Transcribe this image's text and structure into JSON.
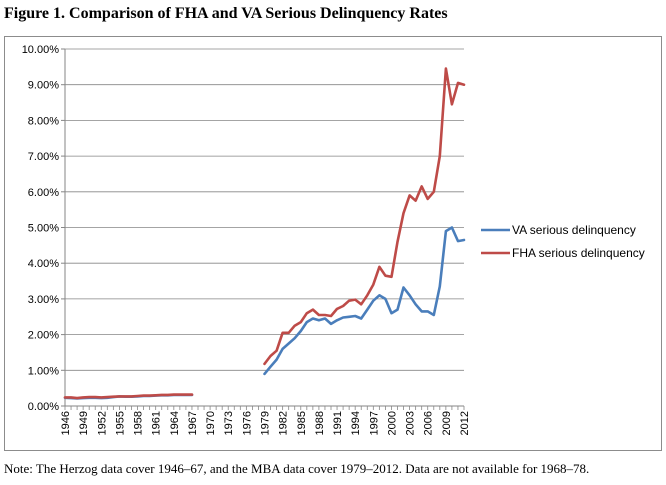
{
  "title": "Figure 1. Comparison of FHA and VA Serious Delinquency Rates",
  "note": "Note: The Herzog data cover 1946–67, and the MBA data cover 1979–2012. Data are not available for 1968–78.",
  "colors": {
    "va": "#4a7ebb",
    "fha": "#be4b48",
    "axis": "#868686",
    "grid": "#868686"
  },
  "chart_data": {
    "type": "line",
    "title": "Figure 1. Comparison of FHA and VA Serious Delinquency Rates",
    "xlabel": "",
    "ylabel": "",
    "ylim": [
      0,
      10
    ],
    "y_unit": "percent",
    "y_tick_labels": [
      "0.00%",
      "1.00%",
      "2.00%",
      "3.00%",
      "4.00%",
      "5.00%",
      "6.00%",
      "7.00%",
      "8.00%",
      "9.00%",
      "10.00%"
    ],
    "x_tick_labels": [
      "1946",
      "1949",
      "1952",
      "1955",
      "1958",
      "1961",
      "1964",
      "1967",
      "1970",
      "1973",
      "1976",
      "1979",
      "1982",
      "1985",
      "1988",
      "1991",
      "1994",
      "1997",
      "2000",
      "2003",
      "2006",
      "2009",
      "2012"
    ],
    "grid": "horizontal",
    "legend_position": "right",
    "x": [
      1946,
      1947,
      1948,
      1949,
      1950,
      1951,
      1952,
      1953,
      1954,
      1955,
      1956,
      1957,
      1958,
      1959,
      1960,
      1961,
      1962,
      1963,
      1964,
      1965,
      1966,
      1967,
      1968,
      1969,
      1970,
      1971,
      1972,
      1973,
      1974,
      1975,
      1976,
      1977,
      1978,
      1979,
      1980,
      1981,
      1982,
      1983,
      1984,
      1985,
      1986,
      1987,
      1988,
      1989,
      1990,
      1991,
      1992,
      1993,
      1994,
      1995,
      1996,
      1997,
      1998,
      1999,
      2000,
      2001,
      2002,
      2003,
      2004,
      2005,
      2006,
      2007,
      2008,
      2009,
      2010,
      2011,
      2012
    ],
    "series": [
      {
        "name": "VA serious delinquency",
        "color": "#4a7ebb",
        "values": [
          0.23,
          0.22,
          0.21,
          0.22,
          0.23,
          0.23,
          0.22,
          0.23,
          0.25,
          0.27,
          0.26,
          0.26,
          0.27,
          0.28,
          0.28,
          0.29,
          0.3,
          0.3,
          0.31,
          0.31,
          0.31,
          0.31,
          null,
          null,
          null,
          null,
          null,
          null,
          null,
          null,
          null,
          null,
          null,
          0.9,
          1.1,
          1.3,
          1.6,
          1.75,
          1.9,
          2.1,
          2.35,
          2.45,
          2.4,
          2.45,
          2.3,
          2.4,
          2.48,
          2.5,
          2.52,
          2.45,
          2.7,
          2.95,
          3.1,
          3.0,
          2.6,
          2.7,
          3.32,
          3.1,
          2.85,
          2.65,
          2.65,
          2.55,
          3.35,
          4.9,
          5.0,
          4.62,
          4.65
        ]
      },
      {
        "name": "FHA serious delinquency",
        "color": "#be4b48",
        "values": [
          0.24,
          0.24,
          0.22,
          0.24,
          0.25,
          0.25,
          0.24,
          0.25,
          0.26,
          0.27,
          0.27,
          0.27,
          0.28,
          0.29,
          0.29,
          0.3,
          0.31,
          0.31,
          0.32,
          0.32,
          0.32,
          0.32,
          null,
          null,
          null,
          null,
          null,
          null,
          null,
          null,
          null,
          null,
          null,
          1.18,
          1.4,
          1.55,
          2.05,
          2.05,
          2.25,
          2.35,
          2.6,
          2.7,
          2.55,
          2.55,
          2.52,
          2.72,
          2.8,
          2.95,
          2.98,
          2.85,
          3.1,
          3.4,
          3.9,
          3.65,
          3.62,
          4.6,
          5.4,
          5.9,
          5.75,
          6.15,
          5.8,
          6.0,
          7.0,
          9.45,
          8.45,
          9.05,
          9.0
        ]
      }
    ]
  }
}
